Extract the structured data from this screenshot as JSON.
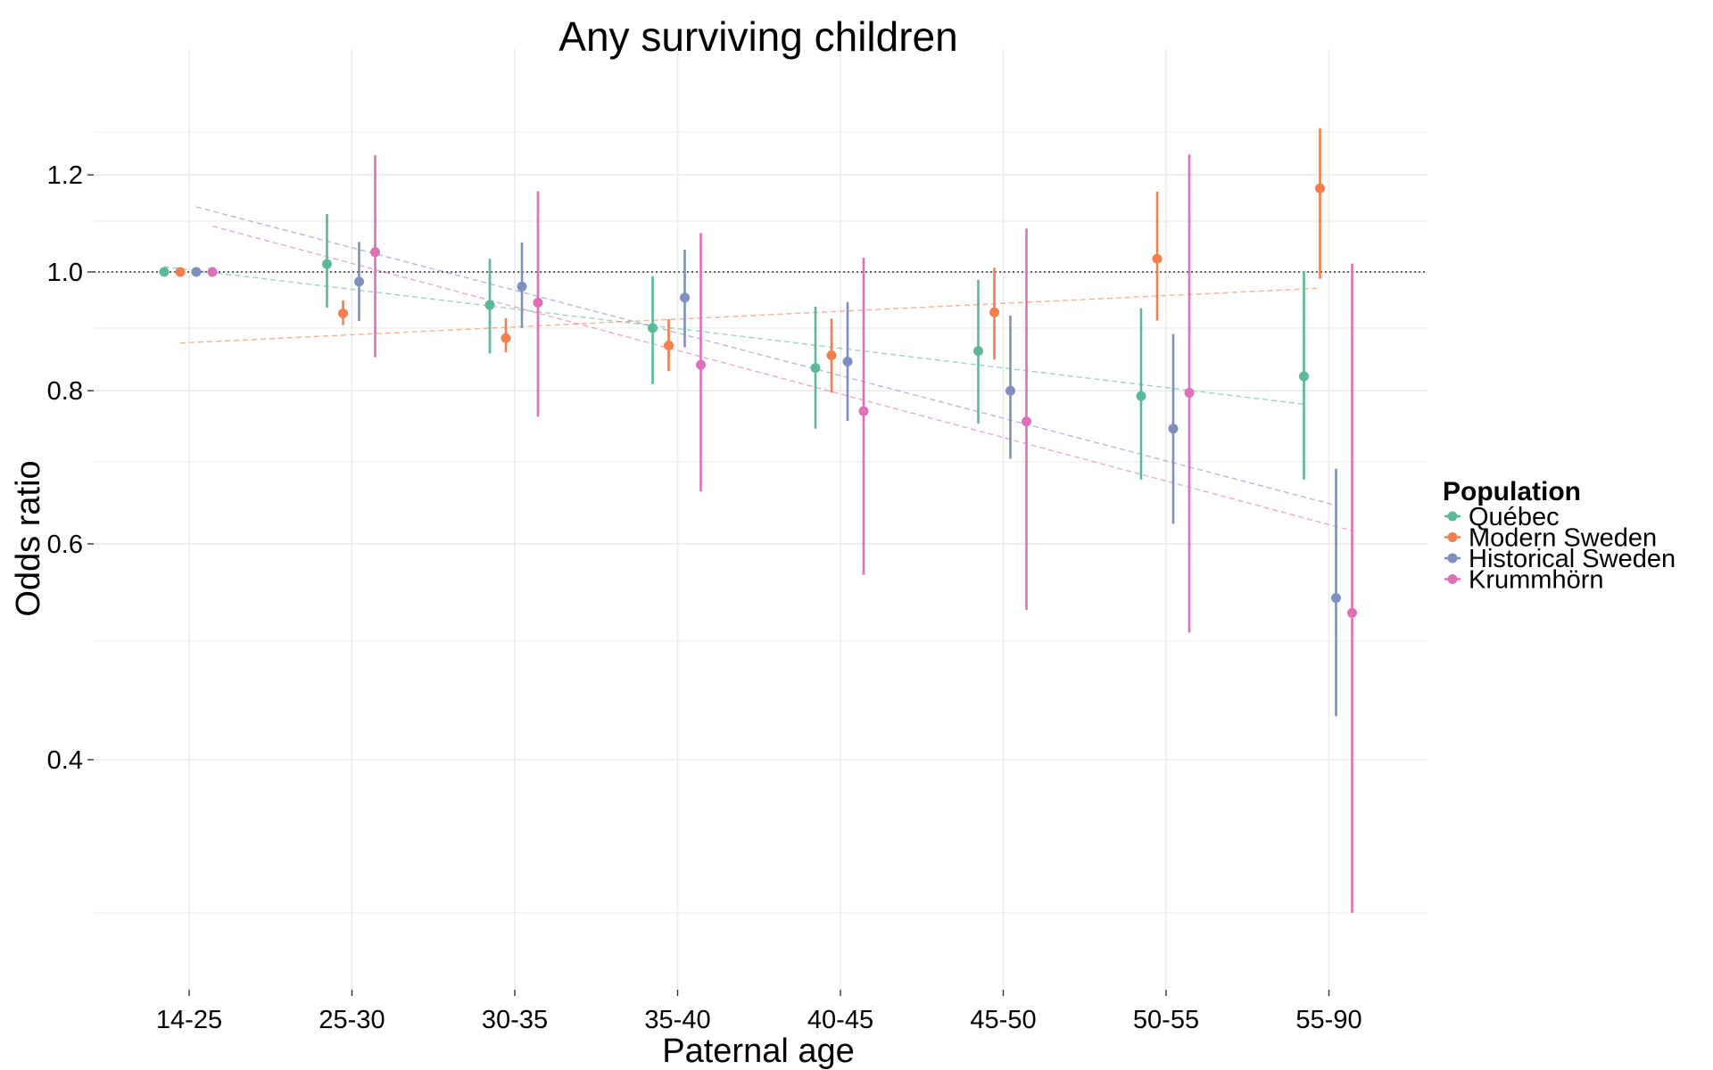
{
  "chart_data": {
    "type": "scatter",
    "title": "Any surviving children",
    "xlabel": "Paternal age",
    "ylabel": "Odds ratio",
    "y_scale": "log",
    "ylim": [
      0.25,
      1.45
    ],
    "y_ticks": [
      0.4,
      0.6,
      0.8,
      1.0,
      1.2
    ],
    "y_tick_labels": [
      "0.4",
      "0.6",
      "0.8",
      "1.0",
      "1.2"
    ],
    "reference_line": 1.0,
    "grid": true,
    "categories": [
      "14-25",
      "25-30",
      "30-35",
      "35-40",
      "40-45",
      "45-50",
      "50-55",
      "55-90"
    ],
    "legend": {
      "title": "Population",
      "position": "right"
    },
    "series": [
      {
        "name": "Québec",
        "color": "#5BB89A",
        "values": [
          1.0,
          1.015,
          0.94,
          0.9,
          0.835,
          0.862,
          0.792,
          0.822
        ],
        "lower": [
          1.0,
          0.935,
          0.858,
          0.81,
          0.745,
          0.752,
          0.677,
          0.677
        ],
        "upper": [
          1.0,
          1.115,
          1.025,
          0.992,
          0.937,
          0.985,
          0.934,
          1.002
        ],
        "trend": [
          1.01,
          0.78
        ]
      },
      {
        "name": "Modern Sweden",
        "color": "#F47F4E",
        "values": [
          1.0,
          0.925,
          0.883,
          0.871,
          0.855,
          0.927,
          1.025,
          1.17
        ],
        "lower": [
          1.0,
          0.905,
          0.86,
          0.83,
          0.797,
          0.848,
          0.913,
          0.987
        ],
        "upper": [
          1.0,
          0.948,
          0.917,
          0.915,
          0.916,
          1.008,
          1.163,
          1.31
        ],
        "trend": [
          0.875,
          0.97
        ]
      },
      {
        "name": "Historical Sweden",
        "color": "#7F8FC0",
        "values": [
          1.0,
          0.982,
          0.973,
          0.953,
          0.845,
          0.8,
          0.745,
          0.542
        ],
        "lower": [
          1.0,
          0.912,
          0.9,
          0.868,
          0.756,
          0.704,
          0.623,
          0.434
        ],
        "upper": [
          1.0,
          1.058,
          1.057,
          1.043,
          0.945,
          0.921,
          0.89,
          0.691
        ],
        "trend": [
          1.13,
          0.645
        ]
      },
      {
        "name": "Krummhörn",
        "color": "#DF6FB9",
        "values": [
          1.0,
          1.038,
          0.944,
          0.84,
          0.77,
          0.755,
          0.797,
          0.527
        ],
        "lower": [
          1.0,
          0.852,
          0.762,
          0.662,
          0.566,
          0.53,
          0.508,
          0.3
        ],
        "upper": [
          1.0,
          1.245,
          1.164,
          1.076,
          1.027,
          1.085,
          1.247,
          1.016
        ],
        "trend": [
          1.09,
          0.615
        ]
      }
    ]
  }
}
